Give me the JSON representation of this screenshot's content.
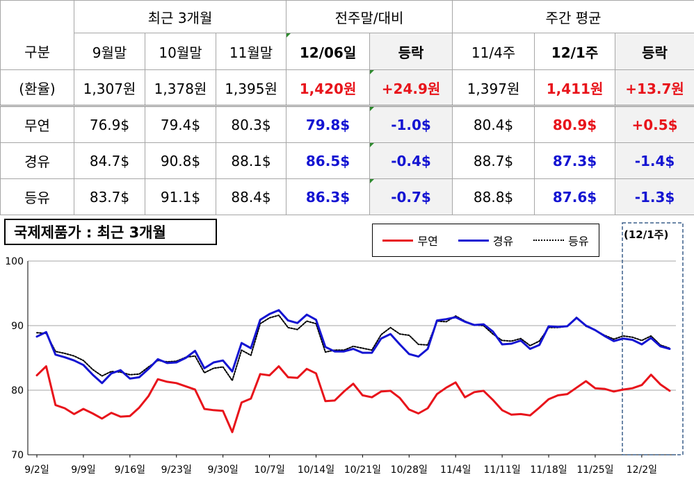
{
  "table": {
    "group_headers": {
      "recent": "최근 3개월",
      "prev_week": "전주말/대비",
      "weekly_avg": "주간 평균"
    },
    "col_headers": [
      "구분",
      "9월말",
      "10월말",
      "11월말",
      "12/06일",
      "등락",
      "11/4주",
      "12/1주",
      "등락"
    ],
    "rows": [
      {
        "label": "(환율)",
        "cells": [
          "1,307원",
          "1,378원",
          "1,395원",
          "1,420원",
          "+24.9원",
          "1,397원",
          "1,411원",
          "+13.7원"
        ]
      },
      {
        "label": "무연",
        "cells": [
          "76.9$",
          "79.4$",
          "80.3$",
          "79.8$",
          "-1.0$",
          "80.4$",
          "80.9$",
          "+0.5$"
        ]
      },
      {
        "label": "경유",
        "cells": [
          "84.7$",
          "90.8$",
          "88.1$",
          "86.5$",
          "-0.4$",
          "88.7$",
          "87.3$",
          "-1.4$"
        ]
      },
      {
        "label": "등유",
        "cells": [
          "83.7$",
          "91.1$",
          "88.4$",
          "86.3$",
          "-0.7$",
          "88.8$",
          "87.6$",
          "-1.3$"
        ]
      }
    ]
  },
  "chart_title": "국제제품가 : 최근 3개월",
  "week_box_label": "(12/1주)",
  "colors": {
    "gasoline": "#e8141b",
    "diesel": "#1414d2",
    "kerosene": "#000000",
    "grid": "#a6a6a6",
    "week_box": "#3a5f8a"
  },
  "chart_data": {
    "type": "line",
    "title": "국제제품가 : 최근 3개월",
    "x_tick_labels": [
      "9/2일",
      "9/9일",
      "9/16일",
      "9/23일",
      "9/30일",
      "10/7일",
      "10/14일",
      "10/21일",
      "10/28일",
      "11/4일",
      "11/11일",
      "11/18일",
      "11/25일",
      "12/2일"
    ],
    "ylim": [
      70,
      100
    ],
    "y_ticks": [
      70,
      80,
      90,
      100
    ],
    "grid": true,
    "legend_position": "top-right",
    "series": [
      {
        "name": "무연",
        "style": "solid",
        "values": [
          82.3,
          83.7,
          77.7,
          77.2,
          76.3,
          77.1,
          76.4,
          75.6,
          76.5,
          75.9,
          76.0,
          77.3,
          79.1,
          81.7,
          81.3,
          81.1,
          80.6,
          80.1,
          77.1,
          76.9,
          76.8,
          73.5,
          78.1,
          78.7,
          82.5,
          82.3,
          83.7,
          82.0,
          81.9,
          83.3,
          82.6,
          78.3,
          78.4,
          79.8,
          81.0,
          79.2,
          78.9,
          79.8,
          79.9,
          78.8,
          77.0,
          76.4,
          77.2,
          79.4,
          80.4,
          81.2,
          78.9,
          79.7,
          79.9,
          78.5,
          76.9,
          76.2,
          76.3,
          76.1,
          77.3,
          78.6,
          79.2,
          79.4,
          80.4,
          81.4,
          80.3,
          80.2,
          79.8,
          80.1,
          80.3,
          80.8,
          82.4,
          80.9,
          79.9
        ]
      },
      {
        "name": "경유",
        "style": "solid",
        "values": [
          88.3,
          89.0,
          85.5,
          85.1,
          84.6,
          83.9,
          82.4,
          81.1,
          82.6,
          83.1,
          81.8,
          82.0,
          83.3,
          84.8,
          84.2,
          84.3,
          85.0,
          86.1,
          83.4,
          84.3,
          84.6,
          82.9,
          87.3,
          86.5,
          90.9,
          91.8,
          92.4,
          90.8,
          90.4,
          91.7,
          90.9,
          86.7,
          86.0,
          86.0,
          86.4,
          85.8,
          85.8,
          88.0,
          88.7,
          87.1,
          85.6,
          85.2,
          86.4,
          90.8,
          91.0,
          91.3,
          90.6,
          90.1,
          90.2,
          89.1,
          87.1,
          87.2,
          87.7,
          86.4,
          87.0,
          89.9,
          89.8,
          89.9,
          91.2,
          90.0,
          89.3,
          88.4,
          87.6,
          88.0,
          87.8,
          87.1,
          88.1,
          86.8,
          86.4
        ]
      },
      {
        "name": "등유",
        "style": "dotted",
        "values": [
          88.9,
          88.8,
          86.0,
          85.7,
          85.3,
          84.6,
          83.2,
          82.2,
          82.9,
          82.8,
          82.4,
          82.5,
          83.6,
          84.6,
          84.4,
          84.5,
          85.1,
          85.3,
          82.7,
          83.4,
          83.6,
          81.5,
          86.2,
          85.4,
          90.3,
          91.2,
          91.6,
          89.7,
          89.4,
          90.7,
          90.3,
          85.9,
          86.2,
          86.2,
          86.8,
          86.5,
          86.2,
          88.6,
          89.7,
          88.7,
          88.5,
          87.1,
          87.0,
          90.7,
          90.6,
          91.5,
          90.7,
          90.1,
          90.0,
          88.7,
          87.7,
          87.6,
          88.0,
          86.9,
          87.6,
          89.7,
          89.7,
          89.9,
          91.3,
          89.9,
          89.3,
          88.5,
          87.9,
          88.4,
          88.2,
          87.7,
          88.4,
          87.0,
          86.5
        ]
      }
    ]
  }
}
